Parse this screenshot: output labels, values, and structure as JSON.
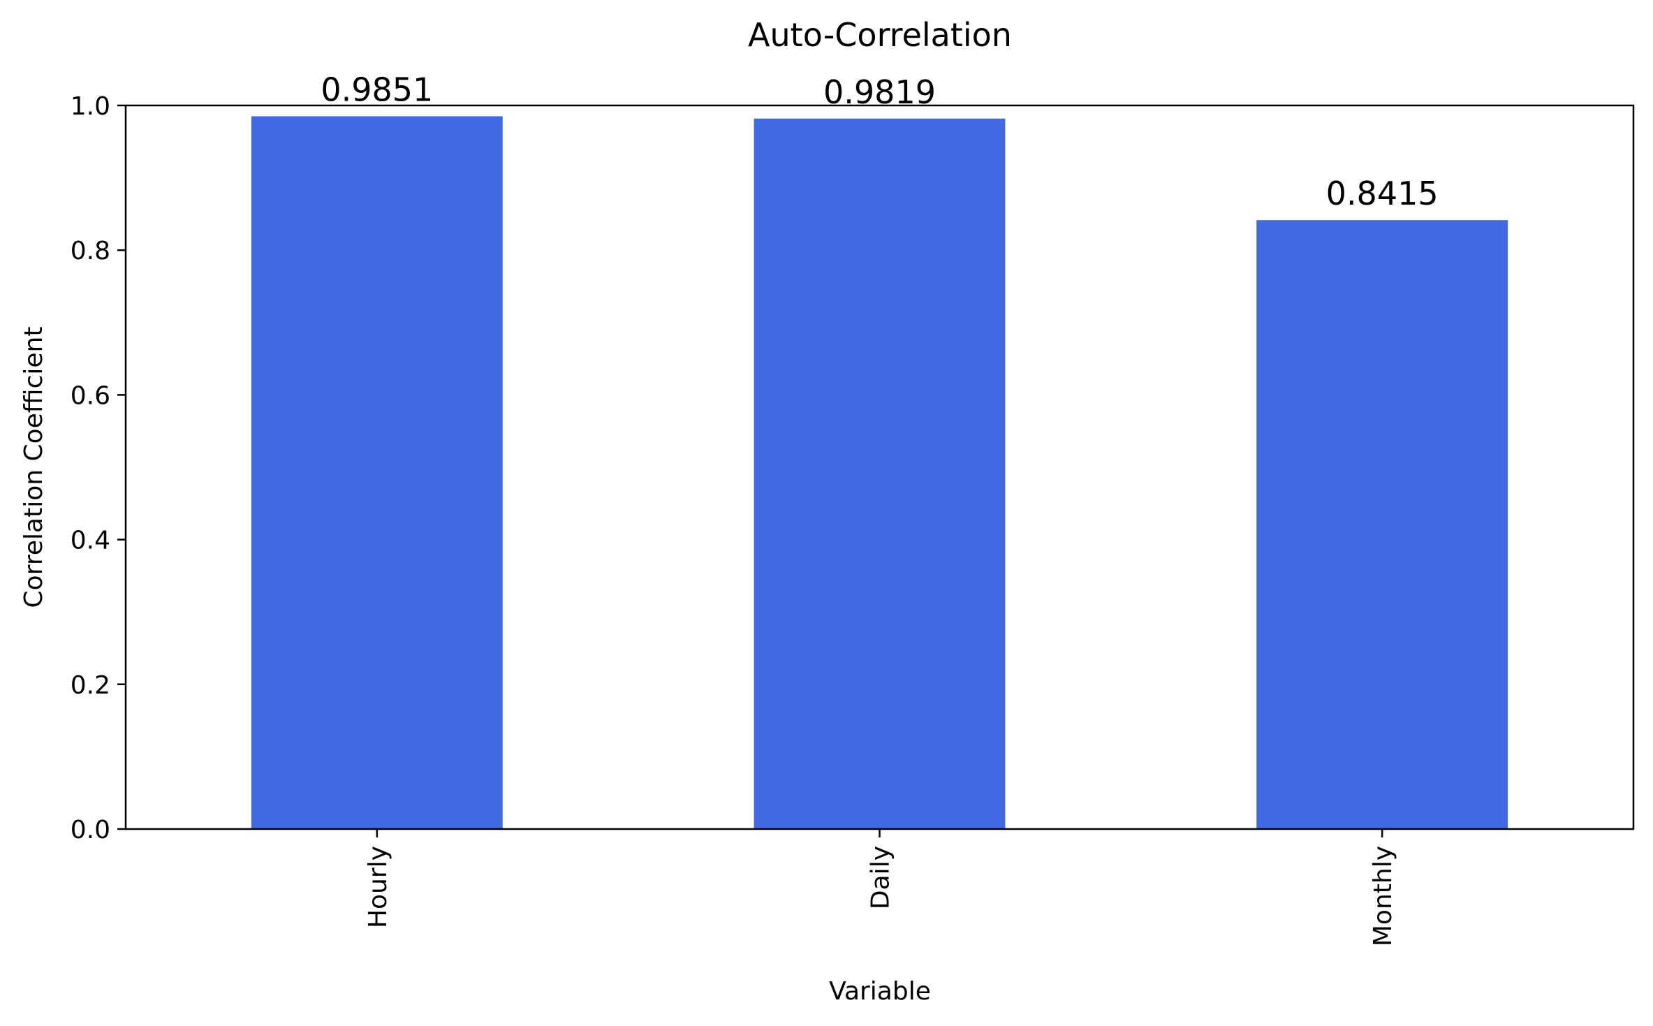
{
  "chart_data": {
    "type": "bar",
    "title": "Auto-Correlation",
    "xlabel": "Variable",
    "ylabel": "Correlation Coefficient",
    "categories": [
      "Hourly",
      "Daily",
      "Monthly"
    ],
    "values": [
      0.9851,
      0.9819,
      0.8415
    ],
    "data_labels": [
      "0.9851",
      "0.9819",
      "0.8415"
    ],
    "ylim": [
      0,
      1.0
    ],
    "yticks": [
      0.0,
      0.2,
      0.4,
      0.6,
      0.8,
      1.0
    ],
    "ytick_labels": [
      "0.0",
      "0.2",
      "0.4",
      "0.6",
      "0.8",
      "1.0"
    ],
    "grid": false,
    "legend": "none",
    "bar_color": "#4169E1",
    "x_tick_rotation": "vertical"
  }
}
